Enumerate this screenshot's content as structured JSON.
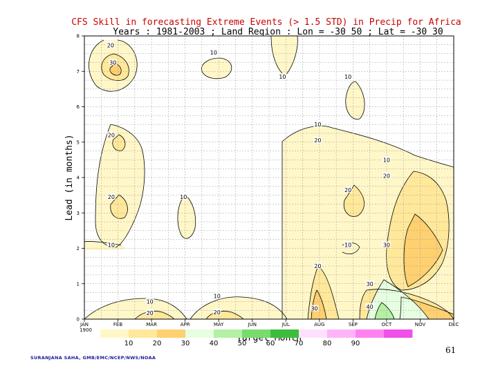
{
  "chart_data": {
    "type": "contour",
    "title": "CFS Skill in forecasting Extreme Events (> 1.5 STD) in Precip for Africa",
    "subtitle": "Years : 1981-2003 ; Land Region : Lon = -30 50 ; Lat = -30 30",
    "xlabel": "Target Month",
    "ylabel": "Lead (in months)",
    "x_ticks": [
      "JAN\n1900",
      "FEB",
      "MAR",
      "APR",
      "MAY",
      "JUN",
      "JUL",
      "AUG",
      "SEP",
      "OCT",
      "NOV",
      "DEC"
    ],
    "y_ticks": [
      "0",
      "1",
      "2",
      "3",
      "4",
      "5",
      "6",
      "7",
      "8"
    ],
    "ylim": [
      0,
      8
    ],
    "grid": true,
    "contour_levels": [
      10,
      20,
      30,
      40,
      50,
      60,
      70,
      80,
      90
    ],
    "shading_colors": [
      "#fff7c8",
      "#ffe89a",
      "#ffd070",
      "#e6ffe0",
      "#b4f0a4",
      "#78dc6c",
      "#3cbe3c",
      "#ffe0ff",
      "#ffb4f8",
      "#ff82f0",
      "#f050e8"
    ],
    "contour_labels": [
      {
        "month": 1.78,
        "lead": 7.74,
        "value": "20"
      },
      {
        "month": 1.85,
        "lead": 7.25,
        "value": "30"
      },
      {
        "month": 4.85,
        "lead": 7.53,
        "value": "10"
      },
      {
        "month": 6.9,
        "lead": 6.85,
        "value": "10"
      },
      {
        "month": 8.85,
        "lead": 6.85,
        "value": "10"
      },
      {
        "month": 1.8,
        "lead": 5.2,
        "value": "20"
      },
      {
        "month": 7.95,
        "lead": 5.5,
        "value": "10"
      },
      {
        "month": 7.95,
        "lead": 5.05,
        "value": "20"
      },
      {
        "month": 10.0,
        "lead": 4.5,
        "value": "10"
      },
      {
        "month": 10.0,
        "lead": 4.05,
        "value": "20"
      },
      {
        "month": 8.85,
        "lead": 3.65,
        "value": "20"
      },
      {
        "month": 1.8,
        "lead": 3.45,
        "value": "20"
      },
      {
        "month": 3.95,
        "lead": 3.45,
        "value": "10"
      },
      {
        "month": 1.8,
        "lead": 2.1,
        "value": "10"
      },
      {
        "month": 8.85,
        "lead": 2.1,
        "value": "10"
      },
      {
        "month": 10.0,
        "lead": 2.1,
        "value": "30"
      },
      {
        "month": 7.95,
        "lead": 1.5,
        "value": "20"
      },
      {
        "month": 9.5,
        "lead": 1.0,
        "value": "30"
      },
      {
        "month": 2.95,
        "lead": 0.5,
        "value": "10"
      },
      {
        "month": 2.95,
        "lead": 0.18,
        "value": "20"
      },
      {
        "month": 4.95,
        "lead": 0.65,
        "value": "10"
      },
      {
        "month": 4.95,
        "lead": 0.2,
        "value": "20"
      },
      {
        "month": 7.85,
        "lead": 0.3,
        "value": "30"
      },
      {
        "month": 9.5,
        "lead": 0.35,
        "value": "40"
      }
    ],
    "legend": {
      "ticks": [
        "10",
        "20",
        "30",
        "40",
        "50",
        "60",
        "70",
        "80",
        "90"
      ],
      "colors": [
        "#fff7c8",
        "#ffe89a",
        "#ffd070",
        "#e6ffe0",
        "#b4f0a4",
        "#78dc6c",
        "#3cbe3c",
        "#ffe0ff",
        "#ffb4f8",
        "#ff82f0",
        "#f050e8"
      ]
    }
  },
  "footer": {
    "credit": "SURANJANA SAHA, GMB/EMC/NCEP/NWS/NOAA",
    "page_number": "61"
  }
}
